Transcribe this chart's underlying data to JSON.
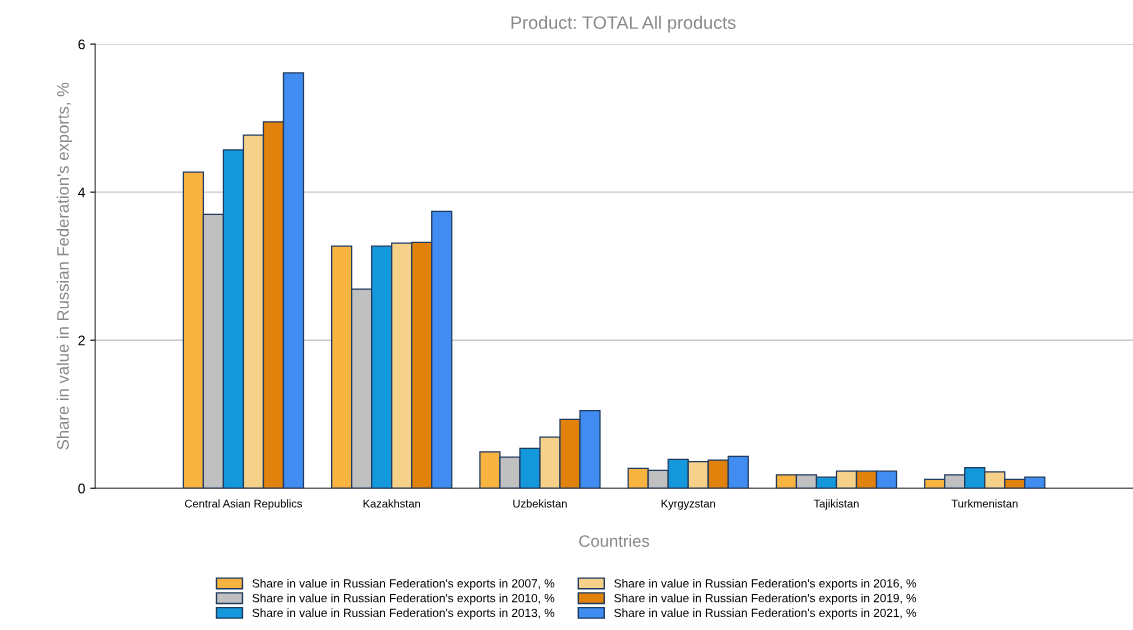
{
  "chart_data": {
    "type": "bar",
    "title": "Product: TOTAL All products",
    "xlabel": "Countries",
    "ylabel": "Share in value in Russian Federation's exports, %",
    "categories": [
      "Central Asian Republics",
      "Kazakhstan",
      "Uzbekistan",
      "Kyrgyzstan",
      "Tajikistan",
      "Turkmenistan"
    ],
    "series": [
      {
        "name": "Share in value in Russian Federation's exports in 2007, %",
        "color": "#f9b340",
        "values": [
          4.27,
          3.27,
          0.49,
          0.27,
          0.18,
          0.12
        ]
      },
      {
        "name": "Share in value in Russian Federation's exports in 2010, %",
        "color": "#c0c0c0",
        "values": [
          3.7,
          2.69,
          0.42,
          0.24,
          0.18,
          0.18
        ]
      },
      {
        "name": "Share in value in Russian Federation's exports in 2013, %",
        "color": "#1399db",
        "values": [
          4.57,
          3.27,
          0.54,
          0.39,
          0.15,
          0.28
        ]
      },
      {
        "name": "Share in value in Russian Federation's exports in 2016, %",
        "color": "#f5d18a",
        "values": [
          4.77,
          3.31,
          0.69,
          0.36,
          0.23,
          0.22
        ]
      },
      {
        "name": "Share in value in Russian Federation's exports in 2019, %",
        "color": "#e0820c",
        "values": [
          4.95,
          3.32,
          0.93,
          0.38,
          0.23,
          0.12
        ]
      },
      {
        "name": "Share in value in Russian Federation's exports in 2021, %",
        "color": "#408cf0",
        "values": [
          5.61,
          3.74,
          1.05,
          0.43,
          0.23,
          0.15
        ]
      }
    ],
    "ylim": [
      0,
      6
    ],
    "yticks": [
      0,
      2,
      4,
      6
    ],
    "grid": "y",
    "legend": "bottom"
  }
}
